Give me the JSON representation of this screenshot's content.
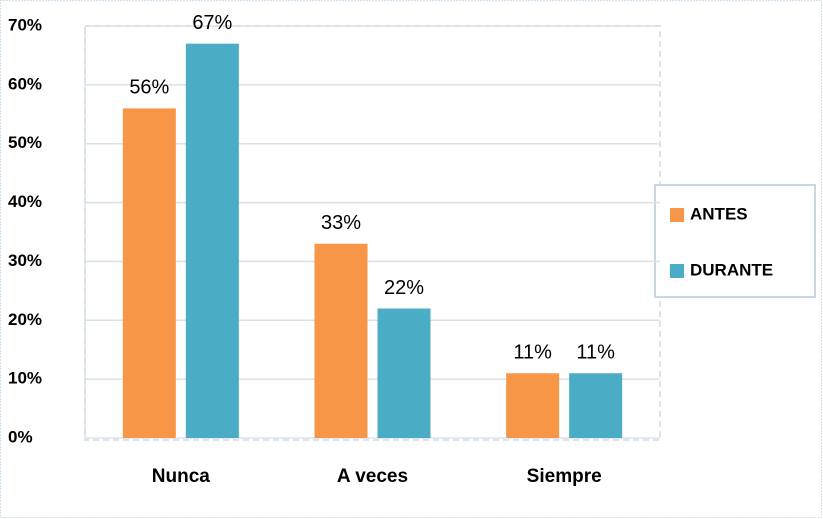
{
  "chart_data": {
    "type": "bar",
    "categories": [
      "Nunca",
      "A veces",
      "Siempre"
    ],
    "series": [
      {
        "name": "ANTES",
        "color": "#f79646",
        "values": [
          56,
          33,
          11
        ],
        "value_labels": [
          "56%",
          "33%",
          "11%"
        ]
      },
      {
        "name": "DURANTE",
        "color": "#4bacc6",
        "values": [
          67,
          22,
          11
        ],
        "value_labels": [
          "67%",
          "22%",
          "11%"
        ]
      }
    ],
    "ylim": [
      0,
      70
    ],
    "yticks": [
      {
        "value": 0,
        "label": "0%"
      },
      {
        "value": 10,
        "label": "10%"
      },
      {
        "value": 20,
        "label": "20%"
      },
      {
        "value": 30,
        "label": "30%"
      },
      {
        "value": 40,
        "label": "40%"
      },
      {
        "value": 50,
        "label": "50%"
      },
      {
        "value": 60,
        "label": "60%"
      },
      {
        "value": 70,
        "label": "70%"
      }
    ],
    "grid": true,
    "legend": "right"
  }
}
